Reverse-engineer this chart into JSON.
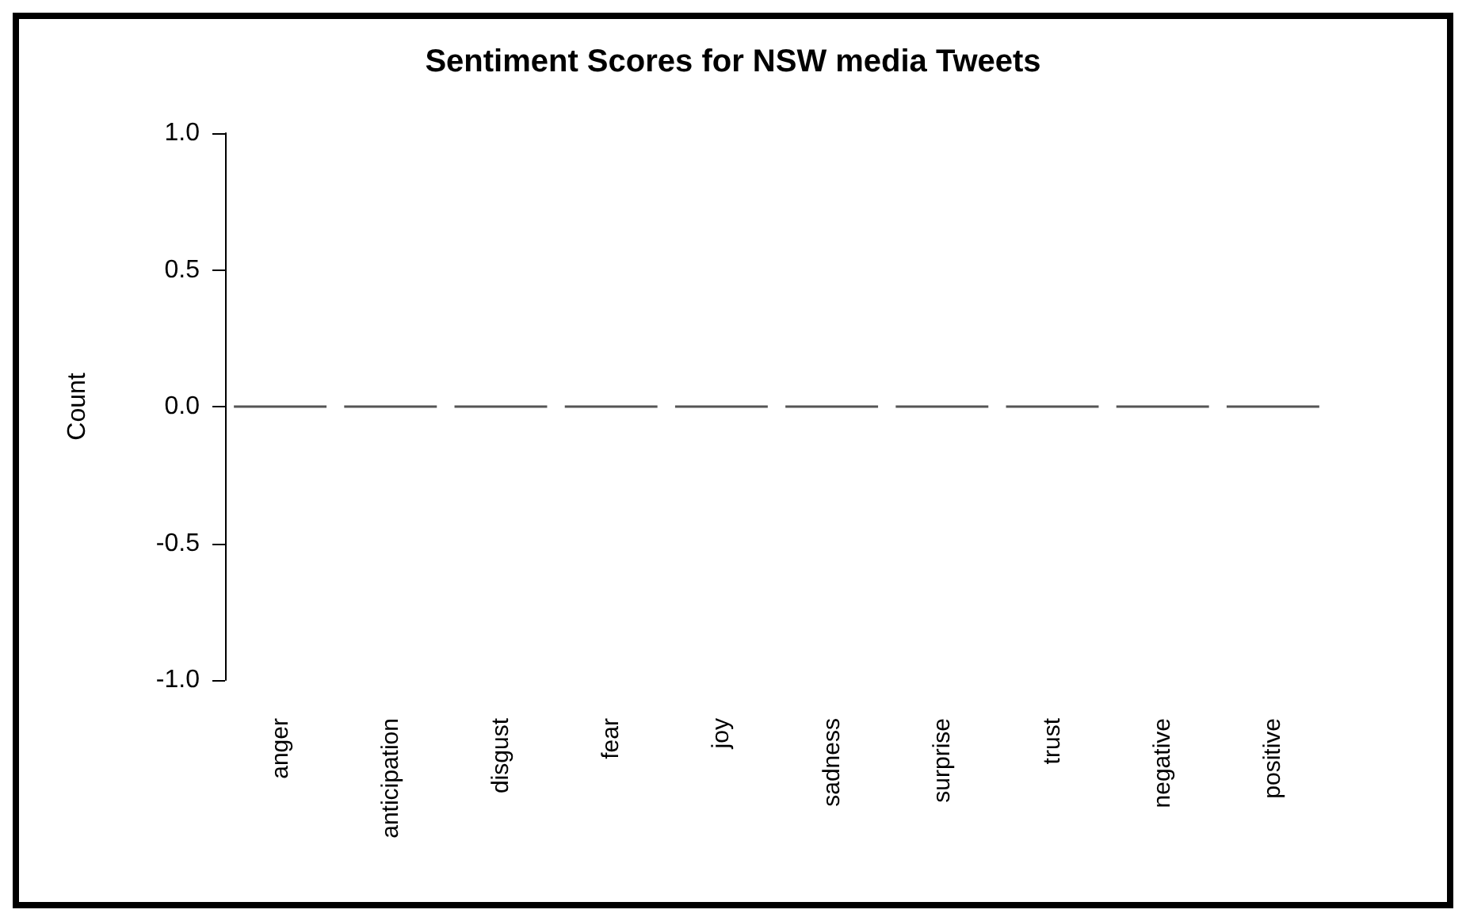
{
  "chart_data": {
    "type": "bar",
    "title": "Sentiment Scores for NSW media Tweets",
    "ylabel": "Count",
    "categories": [
      "anger",
      "anticipation",
      "disgust",
      "fear",
      "joy",
      "sadness",
      "surprise",
      "trust",
      "negative",
      "positive"
    ],
    "values": [
      0,
      0,
      0,
      0,
      0,
      0,
      0,
      0,
      0,
      0
    ],
    "color": "#555555",
    "ylim": [
      -1.0,
      1.0
    ],
    "yticks": [
      {
        "value": -1,
        "label": "-1.0"
      },
      {
        "value": -0.5,
        "label": "-0.5"
      },
      {
        "value": 0,
        "label": "0.0"
      },
      {
        "value": 0.5,
        "label": "0.5"
      },
      {
        "value": 1,
        "label": "1.0"
      }
    ]
  }
}
